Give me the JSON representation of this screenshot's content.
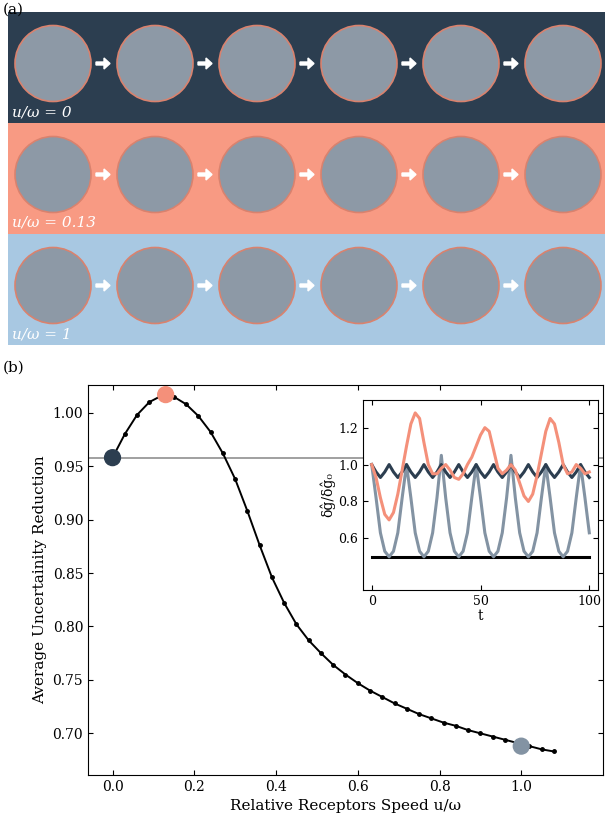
{
  "panel_a": {
    "label": "(a)",
    "rows": [
      {
        "label": "u/ω = 0",
        "color": "#2c3e50"
      },
      {
        "label": "u/ω = 0.13",
        "color": "#f89a83"
      },
      {
        "label": "u/ω = 1",
        "color": "#a8c8e2"
      }
    ]
  },
  "chart_data": [
    {
      "type": "line",
      "title": "(b)",
      "xlabel": "Relative Receptors Speed u/ω",
      "ylabel": "Average Uncertainity Reduction",
      "x": [
        0.0,
        0.03,
        0.06,
        0.09,
        0.12,
        0.15,
        0.18,
        0.21,
        0.24,
        0.27,
        0.3,
        0.33,
        0.36,
        0.39,
        0.42,
        0.45,
        0.48,
        0.51,
        0.54,
        0.57,
        0.6,
        0.63,
        0.66,
        0.69,
        0.72,
        0.75,
        0.78,
        0.81,
        0.84,
        0.87,
        0.9,
        0.93,
        0.96,
        0.99,
        1.02,
        1.05,
        1.08
      ],
      "xlim": [
        -0.06,
        1.2
      ],
      "xticks": [
        {
          "value": 0.0,
          "label": "0.0"
        },
        {
          "value": 0.2,
          "label": "0.2"
        },
        {
          "value": 0.4,
          "label": "0.4"
        },
        {
          "value": 0.6,
          "label": "0.6"
        },
        {
          "value": 0.8,
          "label": "0.8"
        },
        {
          "value": 1.0,
          "label": "1.0"
        }
      ],
      "ylim": [
        0.661,
        1.026
      ],
      "yticks": [
        {
          "value": 0.7,
          "label": "0.70"
        },
        {
          "value": 0.75,
          "label": "0.75"
        },
        {
          "value": 0.8,
          "label": "0.80"
        },
        {
          "value": 0.85,
          "label": "0.85"
        },
        {
          "value": 0.9,
          "label": "0.90"
        },
        {
          "value": 0.95,
          "label": "0.95"
        },
        {
          "value": 1.0,
          "label": "1.00"
        }
      ],
      "series": [
        {
          "type": "line",
          "color": "#a0a0a0",
          "line_style": "solid",
          "x": [
            -0.06,
            1.2
          ],
          "values": [
            0.958,
            0.958
          ]
        },
        {
          "type": "line",
          "color": "#000000",
          "marker": "o",
          "line_style": "solid",
          "values": [
            0.958,
            0.98,
            0.998,
            1.01,
            1.016,
            1.015,
            1.008,
            0.997,
            0.982,
            0.962,
            0.938,
            0.908,
            0.876,
            0.846,
            0.822,
            0.802,
            0.787,
            0.775,
            0.764,
            0.755,
            0.747,
            0.74,
            0.734,
            0.728,
            0.723,
            0.718,
            0.714,
            0.71,
            0.707,
            0.703,
            0.7,
            0.697,
            0.694,
            0.691,
            0.688,
            0.685,
            0.683
          ]
        },
        {
          "type": "scatter",
          "marker": "o",
          "colors": [
            "#2c3e50",
            "#f4907a",
            "#8393a3"
          ],
          "x": [
            0.0,
            0.13,
            1.0
          ],
          "values": [
            0.958,
            1.017,
            0.688
          ]
        }
      ]
    },
    {
      "type": "line",
      "xlabel": "t",
      "ylabel": "δĝ/δĝ₀",
      "x": [
        0,
        2,
        4,
        6,
        8,
        10,
        12,
        14,
        16,
        18,
        20,
        22,
        24,
        26,
        28,
        30,
        32,
        34,
        36,
        38,
        40,
        42,
        44,
        46,
        48,
        50,
        52,
        54,
        56,
        58,
        60,
        62,
        64,
        66,
        68,
        70,
        72,
        74,
        76,
        78,
        80,
        82,
        84,
        86,
        88,
        90,
        92,
        94,
        96,
        98,
        100
      ],
      "xlim": [
        -4,
        104
      ],
      "xticks": [
        0,
        50,
        100
      ],
      "ylim": [
        0.32,
        1.35
      ],
      "yticks": [
        {
          "value": 0.6,
          "label": "0.6"
        },
        {
          "value": 0.8,
          "label": "0.8"
        },
        {
          "value": 1.0,
          "label": "1.0"
        },
        {
          "value": 1.2,
          "label": "1.2"
        }
      ],
      "series": [
        {
          "color": "#000000",
          "line_style": "solid",
          "values": [
            0.5,
            0.5,
            0.5,
            0.5,
            0.5,
            0.5,
            0.5,
            0.5,
            0.5,
            0.5,
            0.5,
            0.5,
            0.5,
            0.5,
            0.5,
            0.5,
            0.5,
            0.5,
            0.5,
            0.5,
            0.5,
            0.5,
            0.5,
            0.5,
            0.5,
            0.5,
            0.5,
            0.5,
            0.5,
            0.5,
            0.5,
            0.5,
            0.5,
            0.5,
            0.5,
            0.5,
            0.5,
            0.5,
            0.5,
            0.5,
            0.5,
            0.5,
            0.5,
            0.5,
            0.5,
            0.5,
            0.5,
            0.5,
            0.5,
            0.5,
            0.5
          ]
        },
        {
          "color": "#8393a3",
          "line_style": "solid",
          "values": [
            1.0,
            0.82,
            0.63,
            0.53,
            0.5,
            0.53,
            0.63,
            0.82,
            1.0,
            0.82,
            0.63,
            0.53,
            0.5,
            0.53,
            0.63,
            0.82,
            1.05,
            0.82,
            0.63,
            0.53,
            0.5,
            0.53,
            0.63,
            0.82,
            1.0,
            0.82,
            0.63,
            0.53,
            0.5,
            0.53,
            0.63,
            0.82,
            1.05,
            0.82,
            0.63,
            0.53,
            0.5,
            0.53,
            0.63,
            0.82,
            1.0,
            0.82,
            0.63,
            0.53,
            0.5,
            0.53,
            0.63,
            0.82,
            1.0,
            0.82,
            0.63
          ]
        },
        {
          "color": "#2c3e50",
          "line_style": "solid",
          "values": [
            1.0,
            0.96,
            0.93,
            0.96,
            1.0,
            0.96,
            0.93,
            0.96,
            1.0,
            0.96,
            0.93,
            0.96,
            1.0,
            0.96,
            0.93,
            0.96,
            1.0,
            0.96,
            0.93,
            0.96,
            1.0,
            0.96,
            0.93,
            0.96,
            1.0,
            0.96,
            0.93,
            0.96,
            1.0,
            0.96,
            0.93,
            0.96,
            1.0,
            0.96,
            0.93,
            0.96,
            1.0,
            0.96,
            0.93,
            0.96,
            1.0,
            0.96,
            0.93,
            0.96,
            1.0,
            0.96,
            0.93,
            0.96,
            1.0,
            0.96,
            0.93
          ]
        },
        {
          "color": "#f4907a",
          "line_style": "solid",
          "values": [
            1.0,
            0.93,
            0.82,
            0.73,
            0.7,
            0.74,
            0.84,
            0.97,
            1.1,
            1.22,
            1.28,
            1.25,
            1.12,
            1.0,
            0.95,
            0.95,
            0.98,
            1.0,
            0.97,
            0.93,
            0.92,
            0.95,
            1.0,
            1.04,
            1.1,
            1.16,
            1.2,
            1.18,
            1.08,
            0.98,
            0.95,
            0.97,
            1.0,
            0.97,
            0.9,
            0.83,
            0.8,
            0.84,
            0.94,
            1.06,
            1.18,
            1.25,
            1.22,
            1.12,
            1.0,
            0.95,
            0.96,
            1.0,
            0.98,
            0.95,
            0.96
          ]
        }
      ]
    }
  ]
}
